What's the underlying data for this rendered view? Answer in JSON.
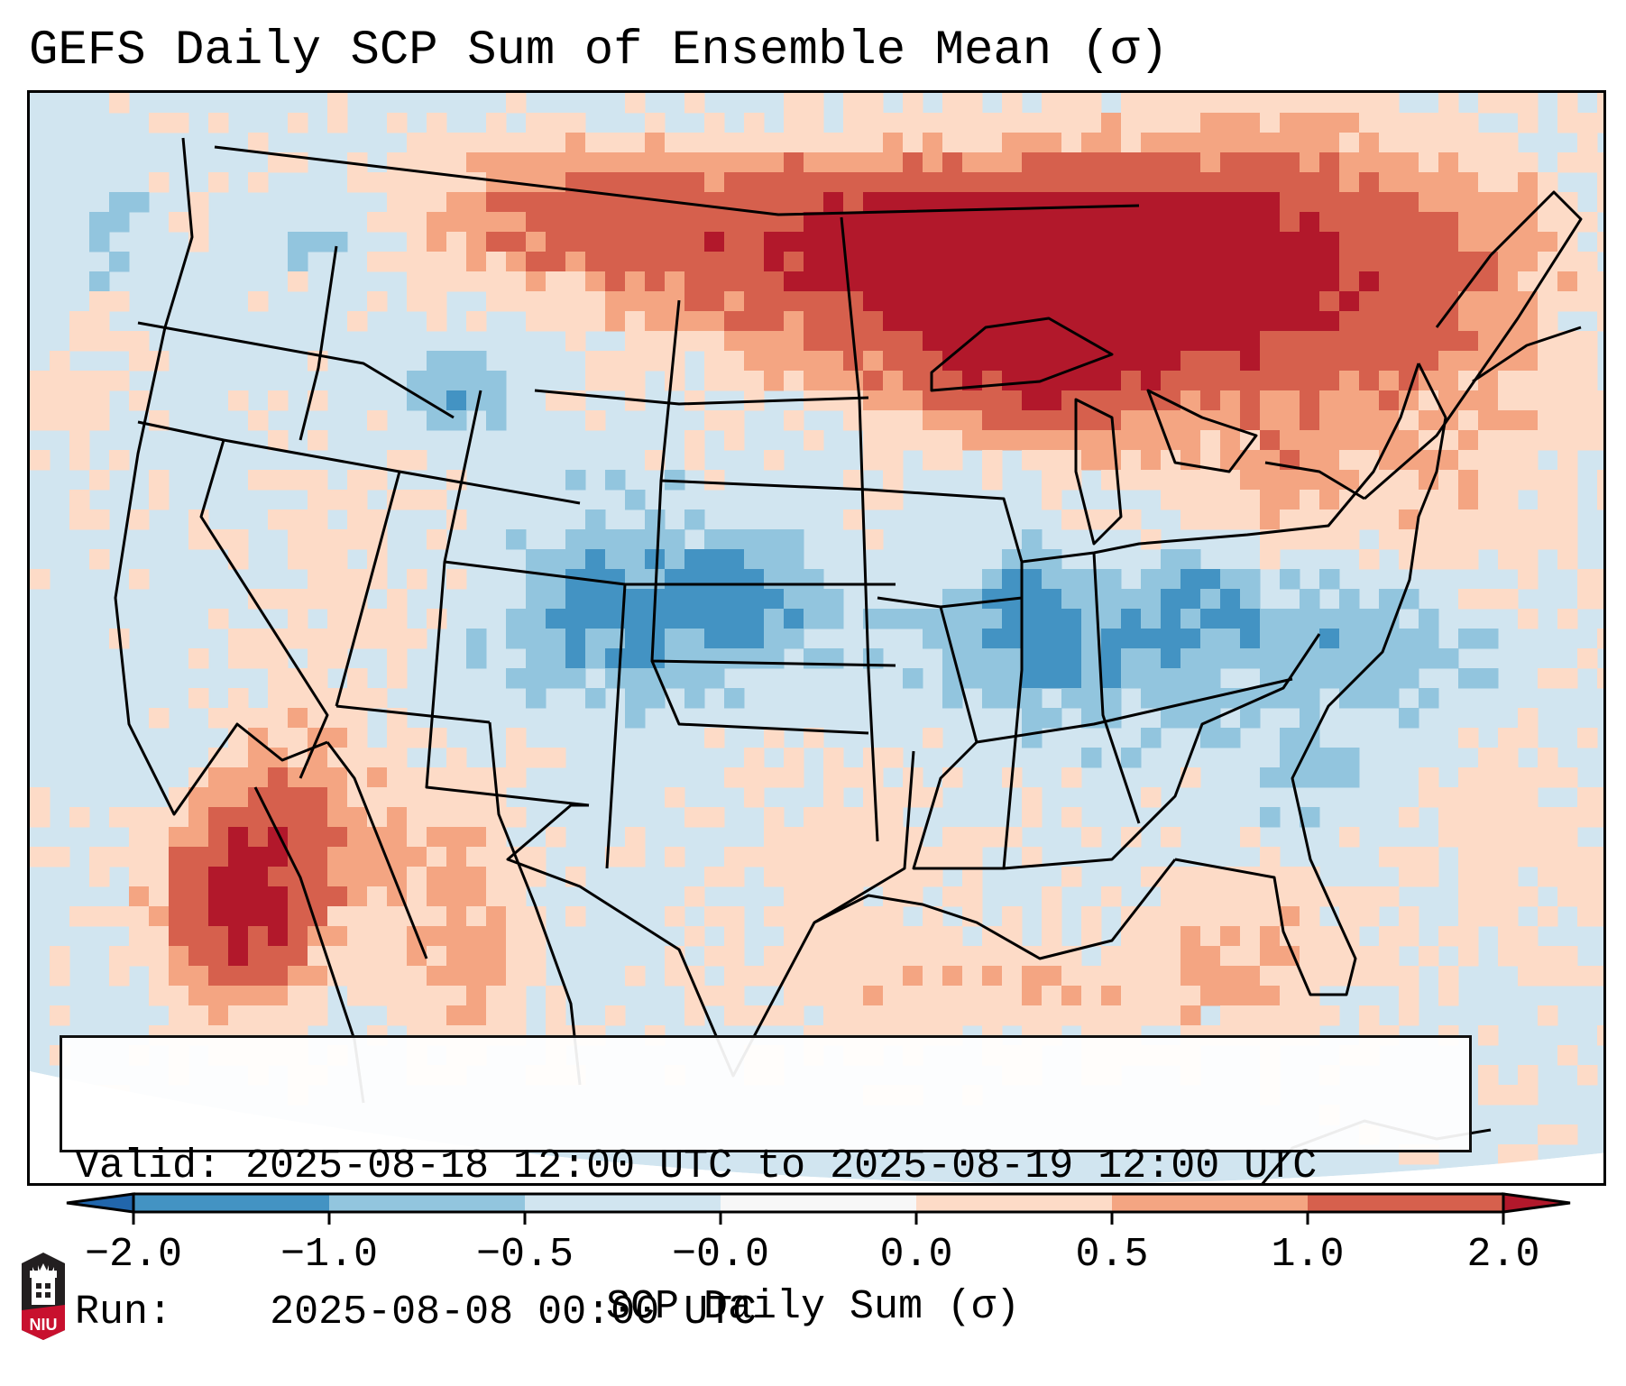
{
  "title": "GEFS Daily SCP Sum of Ensemble Mean (σ)",
  "info_box": {
    "valid_label": "Valid:",
    "valid_value": "2025-08-18 12:00 UTC to 2025-08-19 12:00 UTC",
    "run_label": "Run:",
    "run_value": "2025-08-08 00:00 UTC"
  },
  "logo": {
    "text": "NIU",
    "icon": "niu-tower-logo-icon"
  },
  "chart_data": {
    "type": "heatmap",
    "title": "GEFS Daily SCP Sum of Ensemble Mean (σ)",
    "projection": "Lambert Conformal, CONUS",
    "colorbar": {
      "label": "SCP Daily Sum (σ)",
      "orientation": "horizontal",
      "ticks": [
        "−2.0",
        "−1.0",
        "−0.5",
        "−0.0",
        "0.0",
        "0.5",
        "1.0",
        "2.0"
      ],
      "extend": "both",
      "bins": [
        {
          "range": "< -2.0",
          "color": "#2166ac"
        },
        {
          "range": "-2.0 to -1.0",
          "color": "#4393c3"
        },
        {
          "range": "-1.0 to -0.5",
          "color": "#92c5de"
        },
        {
          "range": "-0.5 to -0.0",
          "color": "#d1e5f0"
        },
        {
          "range": "-0.0 to 0.0",
          "color": "#f7f7f7"
        },
        {
          "range": "0.0 to 0.5",
          "color": "#fddbc7"
        },
        {
          "range": "0.5 to 1.0",
          "color": "#f4a582"
        },
        {
          "range": "1.0 to 2.0",
          "color": "#d6604d"
        },
        {
          "range": "> 2.0",
          "color": "#b2182b"
        }
      ]
    },
    "regions": [
      {
        "name": "Upper Great Lakes / Ontario",
        "level": "1.0 to 2.0 (peaks > 2.0 over Lake Superior)"
      },
      {
        "name": "Southern Canadian Prairies / North Dakota border",
        "level": "0.5 to 1.0"
      },
      {
        "name": "Quebec / St. Lawrence / Maritimes",
        "level": "0.5 to 1.0"
      },
      {
        "name": "Baja California / Gulf of California",
        "level": "1.0 to 2.0 (peak > 2.0)"
      },
      {
        "name": "Northwest Mexico (Sonora/Chihuahua)",
        "level": "0.5 to 1.0"
      },
      {
        "name": "Central Texas",
        "level": "0.0 to 0.5"
      },
      {
        "name": "Northern Gulf of Mexico",
        "level": "0.0 to 0.5"
      },
      {
        "name": "Colorado / Kansas / Nebraska",
        "level": "-1.0 to -0.5"
      },
      {
        "name": "Ohio Valley / Virginia / North Carolina",
        "level": "-1.0 to -0.5"
      },
      {
        "name": "Remainder of CONUS",
        "level": "-0.5 to -0.0"
      }
    ]
  }
}
